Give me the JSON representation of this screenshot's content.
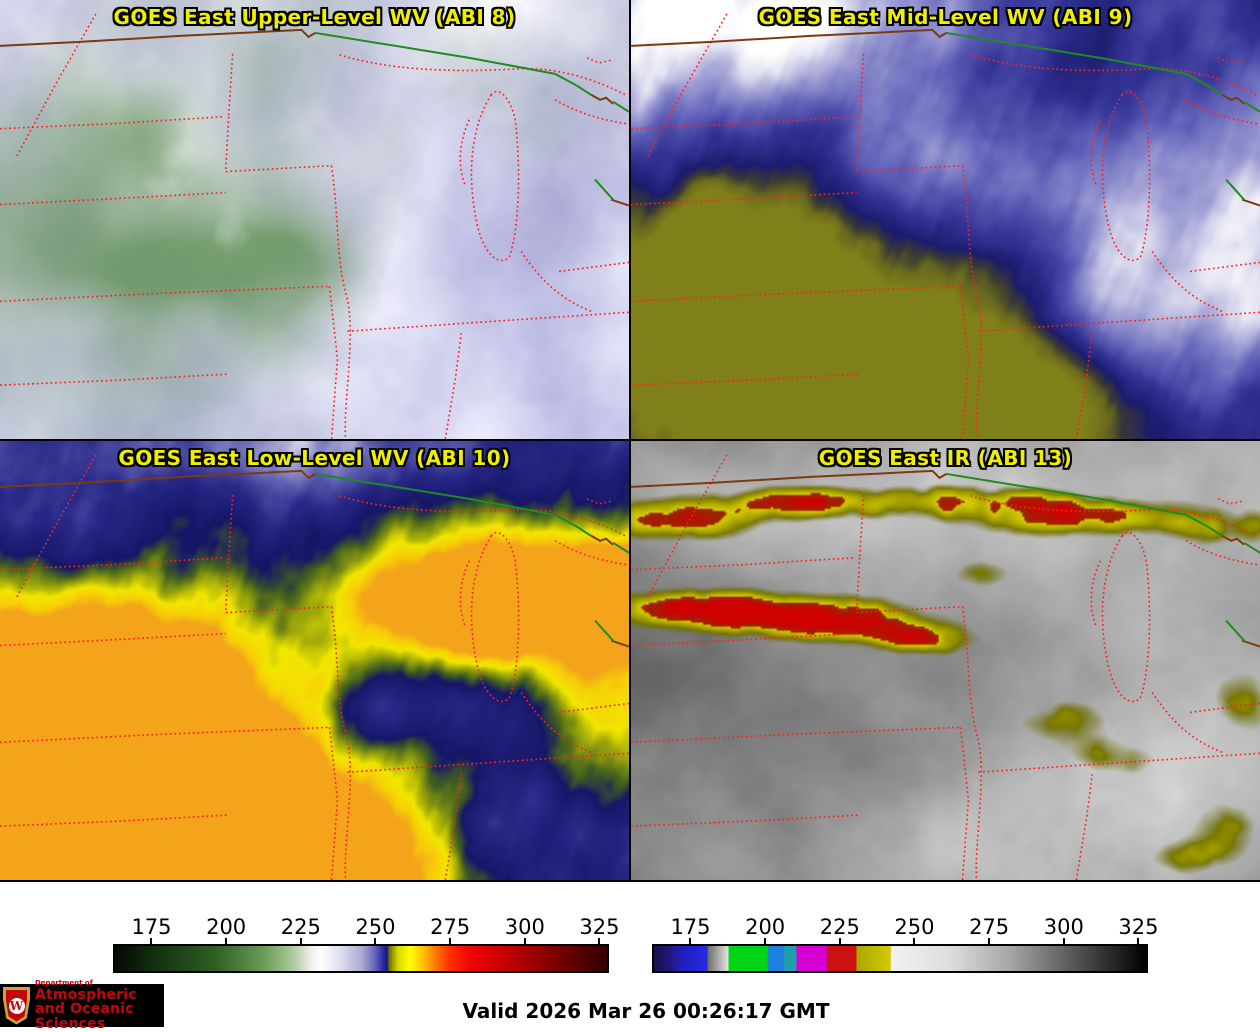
{
  "panels": [
    {
      "id": "abi8",
      "title": "GOES East Upper-Level WV (ABI 8)"
    },
    {
      "id": "abi9",
      "title": "GOES East Mid-Level WV (ABI 9)"
    },
    {
      "id": "abi10",
      "title": "GOES East Low-Level WV (ABI 10)"
    },
    {
      "id": "abi13",
      "title": "GOES East IR (ABI 13)"
    }
  ],
  "colorbars": [
    {
      "name": "wv-brightness-temperature-scale",
      "ticks": [
        "175",
        "200",
        "225",
        "250",
        "275",
        "300",
        "325"
      ],
      "tick_fractions": [
        7.76,
        22.81,
        37.87,
        52.92,
        67.97,
        83.03,
        98.08
      ],
      "gradient": [
        [
          0.0,
          "#050705"
        ],
        [
          0.08,
          "#12300f"
        ],
        [
          0.2,
          "#2c5e22"
        ],
        [
          0.3,
          "#679a56"
        ],
        [
          0.36,
          "#a9c89b"
        ],
        [
          0.4,
          "#f0f0ee"
        ],
        [
          0.42,
          "#ffffff"
        ],
        [
          0.46,
          "#dcdcee"
        ],
        [
          0.5,
          "#aeaed6"
        ],
        [
          0.525,
          "#6e6ebe"
        ],
        [
          0.545,
          "#2a2aa2"
        ],
        [
          0.553,
          "#15158c"
        ],
        [
          0.557,
          "#6e6e00"
        ],
        [
          0.575,
          "#d8d800"
        ],
        [
          0.6,
          "#ffff00"
        ],
        [
          0.625,
          "#ffc400"
        ],
        [
          0.65,
          "#ff7c00"
        ],
        [
          0.68,
          "#ff3000"
        ],
        [
          0.72,
          "#ee0606"
        ],
        [
          0.78,
          "#cf0000"
        ],
        [
          0.84,
          "#a40000"
        ],
        [
          0.9,
          "#780000"
        ],
        [
          0.96,
          "#4c0000"
        ],
        [
          1.0,
          "#320000"
        ]
      ]
    },
    {
      "name": "ir-brightness-temperature-scale",
      "ticks": [
        "175",
        "200",
        "225",
        "250",
        "275",
        "300",
        "325"
      ],
      "tick_fractions": [
        7.76,
        22.81,
        37.87,
        52.92,
        67.97,
        83.03,
        98.08
      ],
      "gradient": [
        [
          0.0,
          "#18104a"
        ],
        [
          0.03,
          "#201878"
        ],
        [
          0.06,
          "#2020c0"
        ],
        [
          0.108,
          "#2828e0"
        ],
        [
          0.11,
          "#707070"
        ],
        [
          0.15,
          "#e0e0e0"
        ],
        [
          0.153,
          "#00d414"
        ],
        [
          0.23,
          "#00d414"
        ],
        [
          0.233,
          "#1f7fdd"
        ],
        [
          0.263,
          "#1f7fdd"
        ],
        [
          0.266,
          "#1fa0a8"
        ],
        [
          0.288,
          "#1fa0a8"
        ],
        [
          0.291,
          "#d400d4"
        ],
        [
          0.35,
          "#d400d4"
        ],
        [
          0.353,
          "#cc1111"
        ],
        [
          0.41,
          "#cc1111"
        ],
        [
          0.413,
          "#a8a800"
        ],
        [
          0.48,
          "#d4c800"
        ],
        [
          0.483,
          "#f2f2f2"
        ],
        [
          0.6,
          "#dedede"
        ],
        [
          0.72,
          "#a8a8a8"
        ],
        [
          0.85,
          "#585858"
        ],
        [
          1.0,
          "#000000"
        ]
      ]
    }
  ],
  "footer": {
    "valid_label": "Valid 2026 Mar 26 00:26:17 GMT"
  },
  "logo": {
    "dept": "Department of",
    "line1": "Atmospheric",
    "line2": "and Oceanic Sciences",
    "crest_letter": "W"
  },
  "colors": {
    "title_text": "#f0ef00",
    "state_border": "#ff2020",
    "national_border": "#7a3b10",
    "water_border": "#1f8b1f",
    "logo_bg": "#000000",
    "logo_text": "#c5050c",
    "tick_text": "#000000",
    "valid_text": "#000000"
  }
}
